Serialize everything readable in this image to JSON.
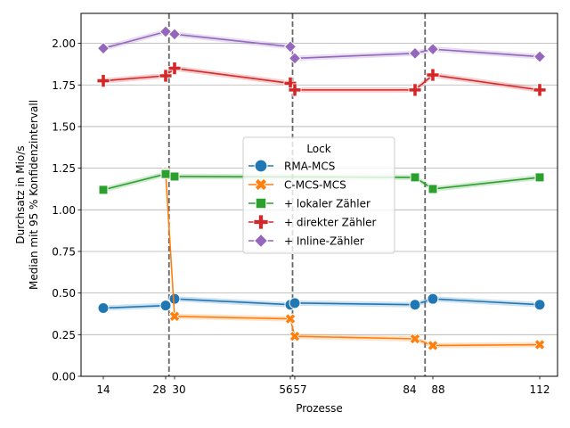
{
  "chart_data": {
    "type": "line",
    "xlabel": "Prozesse",
    "ylabel_line1": "Durchsatz in Mio/s",
    "ylabel_line2": "Median mit 95 % Konfidenzintervall",
    "xlim": [
      9,
      116
    ],
    "ylim": [
      0,
      2.18
    ],
    "x_ticks": [
      14,
      28,
      30,
      56,
      57,
      84,
      88,
      112
    ],
    "x_tick_labels": [
      "14",
      "28",
      "30",
      "56",
      "57",
      "84",
      "88",
      "112"
    ],
    "y_ticks": [
      0.0,
      0.25,
      0.5,
      0.75,
      1.0,
      1.25,
      1.5,
      1.75,
      2.0
    ],
    "y_tick_labels": [
      "0.00",
      "0.25",
      "0.50",
      "0.75",
      "1.00",
      "1.25",
      "1.50",
      "1.75",
      "2.00"
    ],
    "grid_y": true,
    "vlines": [
      28.75,
      56.5,
      86.25
    ],
    "legend": {
      "title": "Lock",
      "placement": "center-right"
    },
    "x": [
      14,
      28,
      30,
      56,
      57,
      84,
      88,
      112
    ],
    "series": [
      {
        "name": "RMA-MCS",
        "color": "#1f77b4",
        "marker": "circle",
        "values": [
          0.41,
          0.425,
          0.465,
          0.43,
          0.44,
          0.43,
          0.465,
          0.43
        ]
      },
      {
        "name": "C-MCS-MCS",
        "color": "#ff7f0e",
        "marker": "x",
        "values": [
          null,
          1.22,
          0.36,
          0.345,
          0.24,
          0.225,
          0.185,
          0.19
        ]
      },
      {
        "name": "+ lokaler Zähler",
        "color": "#2ca02c",
        "marker": "square",
        "values": [
          1.12,
          1.215,
          1.2,
          null,
          null,
          1.195,
          1.125,
          1.195
        ]
      },
      {
        "name": "+ direkter Zähler",
        "color": "#d62728",
        "marker": "plus",
        "values": [
          1.775,
          1.805,
          1.85,
          1.76,
          1.72,
          1.72,
          1.81,
          1.72
        ]
      },
      {
        "name": "+ Inline-Zähler",
        "color": "#9467bd",
        "marker": "diamond",
        "values": [
          1.97,
          2.07,
          2.055,
          1.98,
          1.91,
          1.94,
          1.965,
          1.92
        ]
      }
    ]
  }
}
